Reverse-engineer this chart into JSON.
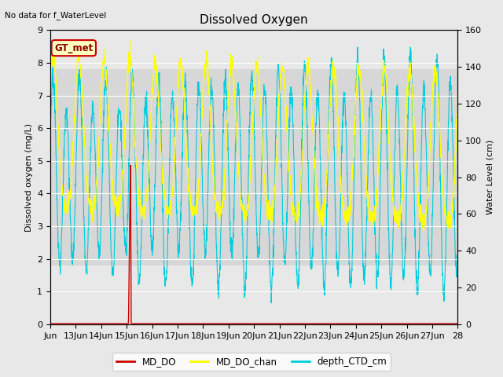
{
  "title": "Dissolved Oxygen",
  "top_left_text": "No data for f_WaterLevel",
  "ylabel_left": "Dissolved oxygen (mg/L)",
  "ylabel_right": "Water Level (cm)",
  "ylim_left": [
    0,
    9.0
  ],
  "ylim_right": [
    0,
    160
  ],
  "yticks_left": [
    0.0,
    1.0,
    2.0,
    3.0,
    4.0,
    5.0,
    6.0,
    7.0,
    8.0,
    9.0
  ],
  "yticks_right": [
    0,
    20,
    40,
    60,
    80,
    100,
    120,
    140,
    160
  ],
  "fig_bg_color": "#e8e8e8",
  "plot_bg_color": "#e8e8e8",
  "band_low": 1.8,
  "band_high": 7.8,
  "band_color": "#d0d0d0",
  "grid_color": "#ffffff",
  "legend_labels": [
    "MD_DO",
    "MD_DO_chan",
    "depth_CTD_cm"
  ],
  "legend_colors": [
    "#cc0000",
    "#ffff00",
    "#00ccdd"
  ],
  "gt_met_text": "GT_met",
  "do_color": "#cc0000",
  "chan_color": "#ffff00",
  "depth_color": "#00ccdd",
  "title_fontsize": 11,
  "label_fontsize": 8,
  "tick_fontsize": 8
}
